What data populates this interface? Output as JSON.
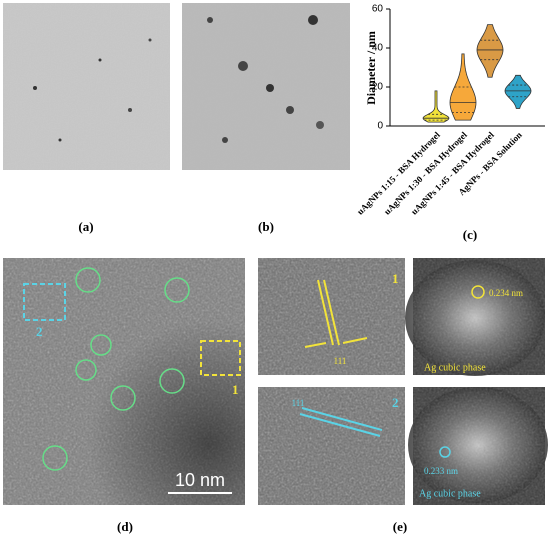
{
  "panel_labels": [
    "(a)",
    "(b)",
    "(c)",
    "(d)",
    "(e)"
  ],
  "chart_data": {
    "type": "violin",
    "ylabel": "Diameter / nm",
    "ylim": [
      0,
      60
    ],
    "yticks": [
      0,
      20,
      40,
      60
    ],
    "categories": [
      "uAgNPs 1:15 - BSA Hydrogel",
      "uAgNPs 1:30 - BSA Hydrogel",
      "uAgNPs 1:45 - BSA Hydrogel",
      "AgNPs - BSA Solution"
    ],
    "series": [
      {
        "color": "#f2e33a",
        "min": 2,
        "q1": 3,
        "median": 4,
        "q3": 6,
        "max": 18
      },
      {
        "color": "#f6a83a",
        "min": 3,
        "q1": 7,
        "median": 12,
        "q3": 20,
        "max": 37
      },
      {
        "color": "#d99a45",
        "min": 25,
        "q1": 34,
        "median": 39,
        "q3": 44,
        "max": 52
      },
      {
        "color": "#2ea3c8",
        "min": 9,
        "q1": 15,
        "median": 18,
        "q3": 21,
        "max": 26
      }
    ]
  },
  "image_d": {
    "scale_bar": "10 nm",
    "region_1": "1",
    "region_2": "2"
  },
  "image_e": {
    "region_1": "1",
    "plane_1": "111",
    "spacing_1": "0.234 nm",
    "phase_1": "Ag cubic phase",
    "region_2": "2",
    "plane_2": "111",
    "spacing_2": "0.233 nm",
    "phase_2": "Ag cubic phase"
  }
}
